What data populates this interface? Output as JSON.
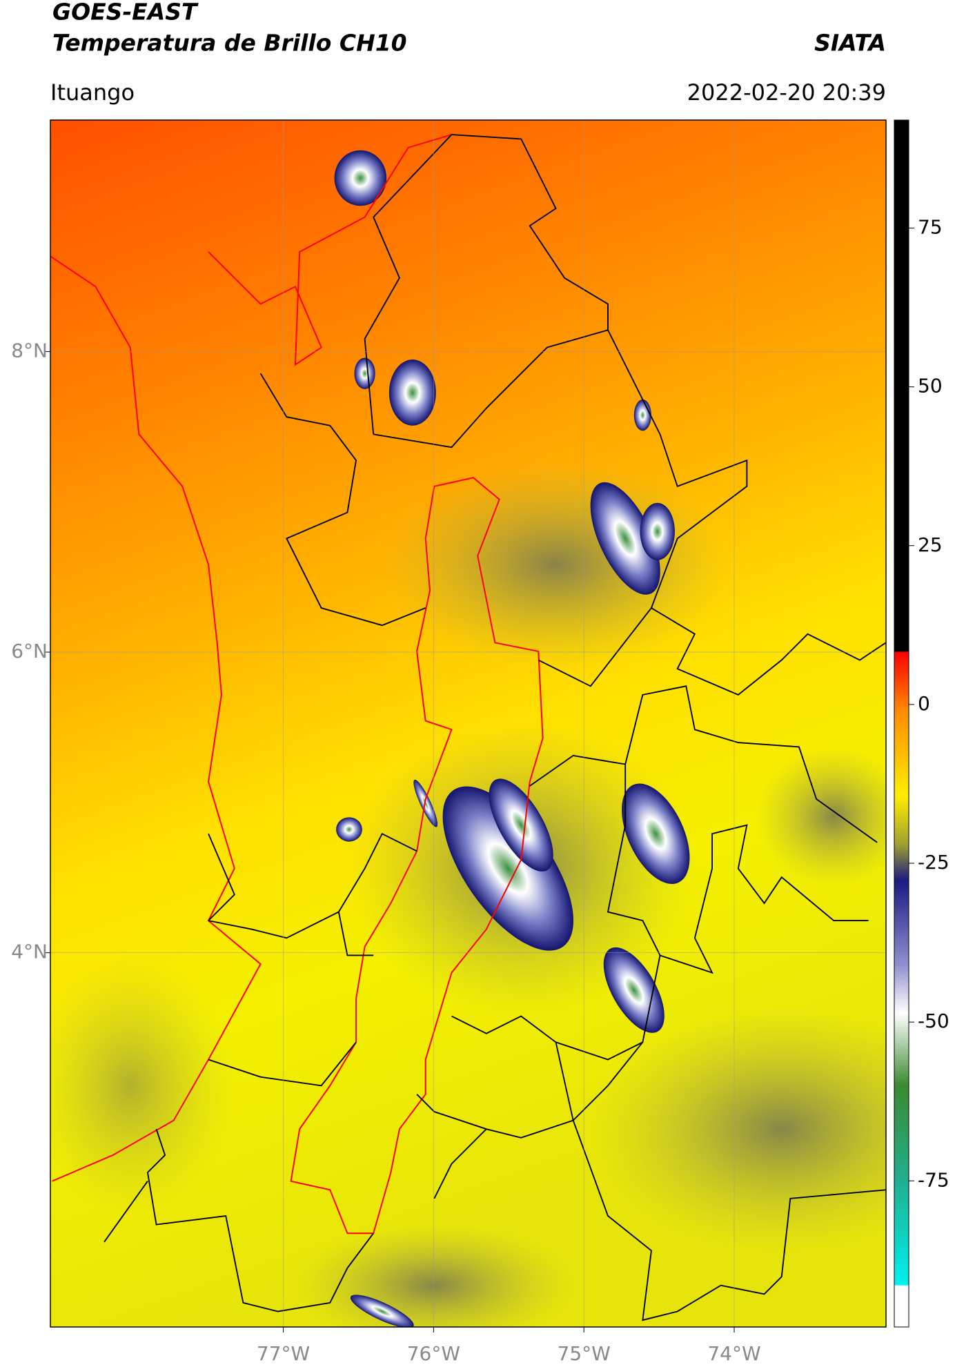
{
  "header": {
    "title": "GOES-EAST",
    "product": "Temperatura de Brillo CH10",
    "agency": "SIATA",
    "location": "Ituango",
    "timestamp": "2022-02-20 20:39"
  },
  "map": {
    "lonlim": [
      -78.55,
      -72.99
    ],
    "latlim": [
      1.51,
      9.54
    ],
    "lonticks": [
      {
        "value": -77,
        "label": "77°W"
      },
      {
        "value": -76,
        "label": "76°W"
      },
      {
        "value": -75,
        "label": "75°W"
      },
      {
        "value": -74,
        "label": "74°W"
      }
    ],
    "latticks": [
      {
        "value": 4,
        "label": "4°N"
      },
      {
        "value": 6,
        "label": "6°N"
      },
      {
        "value": 8,
        "label": "8°N"
      }
    ]
  },
  "colorbar": {
    "lim": [
      -98,
      92
    ],
    "ticks": [
      75,
      50,
      25,
      0,
      -25,
      -50,
      -75
    ]
  }
}
